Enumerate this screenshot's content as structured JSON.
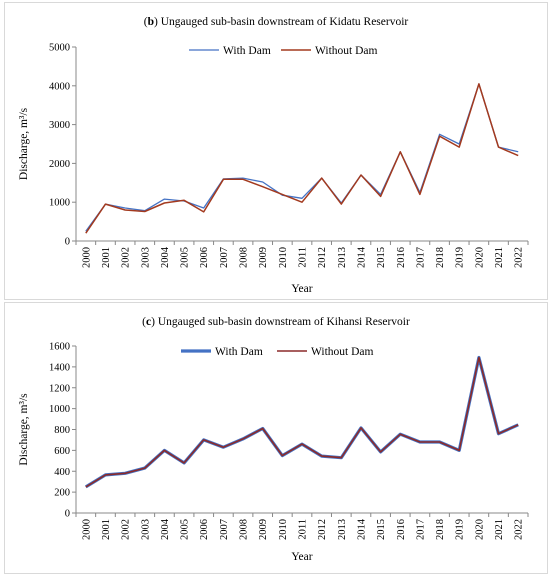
{
  "chart_data": [
    {
      "type": "line",
      "title_bold": "b",
      "title_text": "Ungauged sub-basin downstream of Kidatu Reservoir",
      "xlabel": "Year",
      "ylabel": "Discharge, m³/s",
      "ylim": [
        0,
        5000
      ],
      "yticks": [
        "0",
        "1000",
        "2000",
        "3000",
        "4000",
        "5000"
      ],
      "legend_position": "top-center",
      "grid": false,
      "categories": [
        "2000",
        "2001",
        "2002",
        "2003",
        "2004",
        "2005",
        "2006",
        "2007",
        "2008",
        "2009",
        "2010",
        "2011",
        "2012",
        "2013",
        "2014",
        "2015",
        "2016",
        "2017",
        "2018",
        "2019",
        "2020",
        "2021",
        "2022"
      ],
      "series": [
        {
          "name": "With Dam",
          "color": "#4472C4",
          "values": [
            250,
            950,
            850,
            780,
            1080,
            1030,
            850,
            1600,
            1620,
            1520,
            1180,
            1100,
            1620,
            980,
            1700,
            1200,
            2300,
            1250,
            2750,
            2500,
            4050,
            2420,
            2300
          ]
        },
        {
          "name": "Without Dam",
          "color": "#A33A1F",
          "values": [
            200,
            950,
            800,
            760,
            980,
            1050,
            750,
            1590,
            1590,
            1400,
            1200,
            1000,
            1620,
            950,
            1700,
            1150,
            2300,
            1200,
            2700,
            2420,
            4050,
            2420,
            2200
          ]
        }
      ]
    },
    {
      "type": "line",
      "title_bold": "c",
      "title_text": "Ungauged sub-basin downstream of Kihansi Reservoir",
      "xlabel": "Year",
      "ylabel": "Discharge, m³/s",
      "ylim": [
        0,
        1600
      ],
      "yticks": [
        "0",
        "200",
        "400",
        "600",
        "800",
        "1000",
        "1200",
        "1400",
        "1600"
      ],
      "legend_position": "top-center",
      "grid": false,
      "categories": [
        "2000",
        "2001",
        "2002",
        "2003",
        "2004",
        "2005",
        "2006",
        "2007",
        "2008",
        "2009",
        "2010",
        "2011",
        "2012",
        "2013",
        "2014",
        "2015",
        "2016",
        "2017",
        "2018",
        "2019",
        "2020",
        "2021",
        "2022"
      ],
      "series": [
        {
          "name": "With Dam",
          "color": "#4472C4",
          "values": [
            250,
            365,
            380,
            430,
            600,
            480,
            700,
            630,
            710,
            810,
            550,
            660,
            545,
            530,
            815,
            585,
            755,
            680,
            680,
            600,
            1490,
            760,
            845
          ]
        },
        {
          "name": "Without Dam",
          "color": "#8B2A2A",
          "values": [
            250,
            365,
            380,
            430,
            600,
            480,
            700,
            630,
            710,
            810,
            550,
            660,
            545,
            530,
            815,
            585,
            755,
            680,
            680,
            600,
            1490,
            760,
            845
          ]
        }
      ]
    }
  ]
}
